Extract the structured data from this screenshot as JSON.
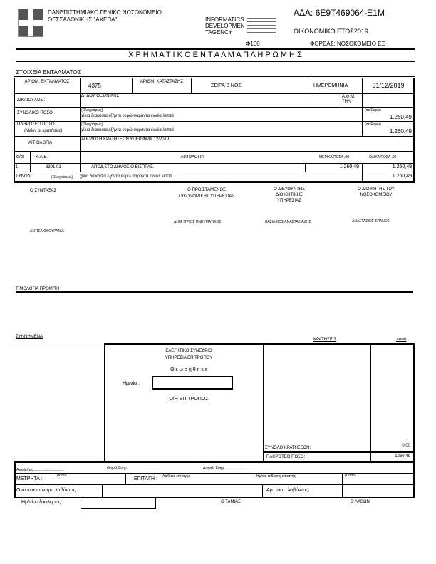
{
  "header": {
    "org_line1": "ΠΑΝΕΠΙΣΤΗΜΙΑΚΟ ΓΕΝΙΚΟ ΝΟΣΟΚΟΜΕΙΟ",
    "org_line2": "ΘΕΣΣΑΛΟΝΙΚΗΣ \"ΑΧΕΠΑ\"",
    "software_vendor": "INFORMATICS DEVELOPMEN TAGENCY",
    "ada": "ΑΔΑ: 6Ε9Τ469064-Ξ1Μ",
    "fiscal_year": "ΟΙΚΟΝΟΜΙΚΟ ΕΤΟΣ2019",
    "form_code": "Φ100",
    "foreas": "ΦΟΡΕΑΣ: ΝΟΣΟΚΟΜΕΙΟ ΕΞ",
    "title": "Χ Ρ Η Μ Α Τ Ι Κ Ο   Ε Ν Τ Α Λ Μ Α   Π Λ Η Ρ Ω Μ Η Σ"
  },
  "section_title": "ΣΤΟΙΧΕΙΑ ΕΝΤΑΛΜΑΤΟΣ",
  "order": {
    "num_label": "ΑΡΙΘΜ. ΕΝΤΑΛΜΑΤΟΣ",
    "num": "4375",
    "status_label": "ΑΡΙΘΜ. ΚΑΤΑΣΤΑΣΗΣ",
    "series": "ΣΕΙΡΑ Β ΝΟΣ",
    "date_label": "ΗΜΕΡΟΜΗΝΙΑ",
    "date": "31/12/2019",
    "beneficiary_label": "ΔΙΚΑΙΟΥΧΟΣ :",
    "beneficiary": "Δ΄ ΔΟΥ ΘΕΣ/ΝΙΚΗΣ",
    "afm_label": "Α.Φ.Μ. ΤΗΛ.",
    "total_label": "ΣΥΝΟΛΙΚΟ ΠΟΣΟ",
    "in_words_label": "(Ολογράφως)",
    "in_euro_label": "(σε Ευρώ)",
    "total_words": "χίλια διακόσια εξήντα ευρώ σαράντα εννέα λεπτά",
    "total": "1.260,49",
    "payable_label": "ΠΛΗΡΩΤΕΟ ΠΟΣΟ",
    "payable_sub": "(Μείον οι κρατήσεις)",
    "payable_words": "χίλια διακόσια εξήντα ευρώ σαράντα εννέα λεπτά",
    "payable": "1.260,49",
    "reason_label": "ΑΙΤΙΟΛΟΓΙΑ",
    "reason": "ΑΠΟΔΟΣΗ ΚΡΑΤΗΣΕΩΝ ΥΠΕΡ ΦΜΥ 12/2019"
  },
  "items": {
    "headers": [
      "α/α",
      "Κ.Α.Ε.",
      "ΑΙΤΙΟΛΟΓΙΑ",
      "ΜΕΡΙΚΑ ΠΟΣΑ ,00",
      "ΟΛΙΚΑ ΠΟΣΑ ,00"
    ],
    "rows": [
      {
        "n": "1",
        "kae": "3391.01",
        "desc": "ΑΠΟΔ.ΣΤΟ ΔΗΜΟΣΙΟ ΕΙΣΠΡΑΞ.",
        "partial": "1.260,49",
        "total": "1.260,49"
      }
    ],
    "sum_label": "ΣΥΝΟΛΟ",
    "sum_words_label": "(Ολογράφως)",
    "sum_words": "χίλια διακόσια εξήντα ευρώ σαράντα εννέα λεπτά",
    "sum": "1.260,49"
  },
  "signatures": [
    {
      "role": "Ο ΣΥΝΤΑΞΑΣ",
      "name": "ΑΝΤΙΣΑΚΗ ΟΥΡΑΝΙΑ"
    },
    {
      "role": "Ο ΠΡΟΪΣΤΑΜΕΝΟΣ ΟΙΚΟΝΟΜΙΚΗΣ ΥΠΗΡΕΣΙΑΣ",
      "name": "ΔΗΜΗΤΡΙΟΣ ΠΝΕΥΜΑΤΙΚΟΣ"
    },
    {
      "role": "Ο ΔΙΕΥΘΥΝΤΗΣ ΔΙΟΙΚΗΤΙΚΗΣ ΥΠΗΡΕΣΙΑΣ",
      "name": "ΒΑΣΙΛΕΙΟΣ ΑΝΑΣΤΑΣΙΑΔΗΣ"
    },
    {
      "role": "Ο ΔΙΟΙΚΗΤΗΣ ΤΟΥ ΝΟΣΟΚΟΜΕΙΟΥ",
      "name": "ΑΝΑΣΤΑΣΙΟΣ ΣΠΑΝΟΣ"
    }
  ],
  "invoices_label": "ΤΙΜΟΛΟΓΙΑ ΠΡΟΜ/ΤΗ",
  "attachments_label": "ΣΥΝΝΗΜΕΝΑ",
  "audit": {
    "line1": "ΕΛΕΓΚΤΙΚΟ ΣΥΝΕΔΡΙΟ",
    "line2": "ΥΠΗΡΕΣΙΑ ΕΠΙΤΡΟΠΟΥ",
    "approved": "Θ ε ω ρ ή θ η κ ε",
    "date_label": "Ημ/νία :",
    "date_value": "",
    "commissioner": "Ο/Η ΕΠΙΤΡΟΠΟΣ"
  },
  "deductions": {
    "label": "ΚΡΑΤΗΣΕΙΣ",
    "amount_label": "ποσό",
    "total_label": "ΣΥΝΟΛΟ ΚΡΑΤΗΣΕΩΝ:",
    "total": "0,00",
    "payable_label": "ΠΛΗΡΩΤΕΟ ΠΟΣΟ:",
    "payable": "1260,49"
  },
  "payment": {
    "receipt": "Αποδείξεις...............................",
    "ledger": "Φορολ.Ενημ...................................",
    "insurance": "Ασφαλ. Ενημ..................................................",
    "cash_label": "ΜΕΤΡΗΤΑ :",
    "amount_small": "(Ποσό)",
    "cheque_label": "ΕΠΙΤΑΓΗ :",
    "cheque_num": "Αριθμός επιταγής",
    "cheque_date": "Ημ/νία έκδοσης επιταγής",
    "amount_small2": "(Ποσό)",
    "receiver_name_label": "Ονοματεπώνυμο λαβόντος:",
    "receiver_id_label": "Αρ. ταυτ. λαβόντος:",
    "pay_date_label": "Ημ/νία εξόφλησης:",
    "cashier": "Ο ΤΑΜΙΑΣ",
    "receiver": "Ο ΛΑΒΩΝ"
  }
}
